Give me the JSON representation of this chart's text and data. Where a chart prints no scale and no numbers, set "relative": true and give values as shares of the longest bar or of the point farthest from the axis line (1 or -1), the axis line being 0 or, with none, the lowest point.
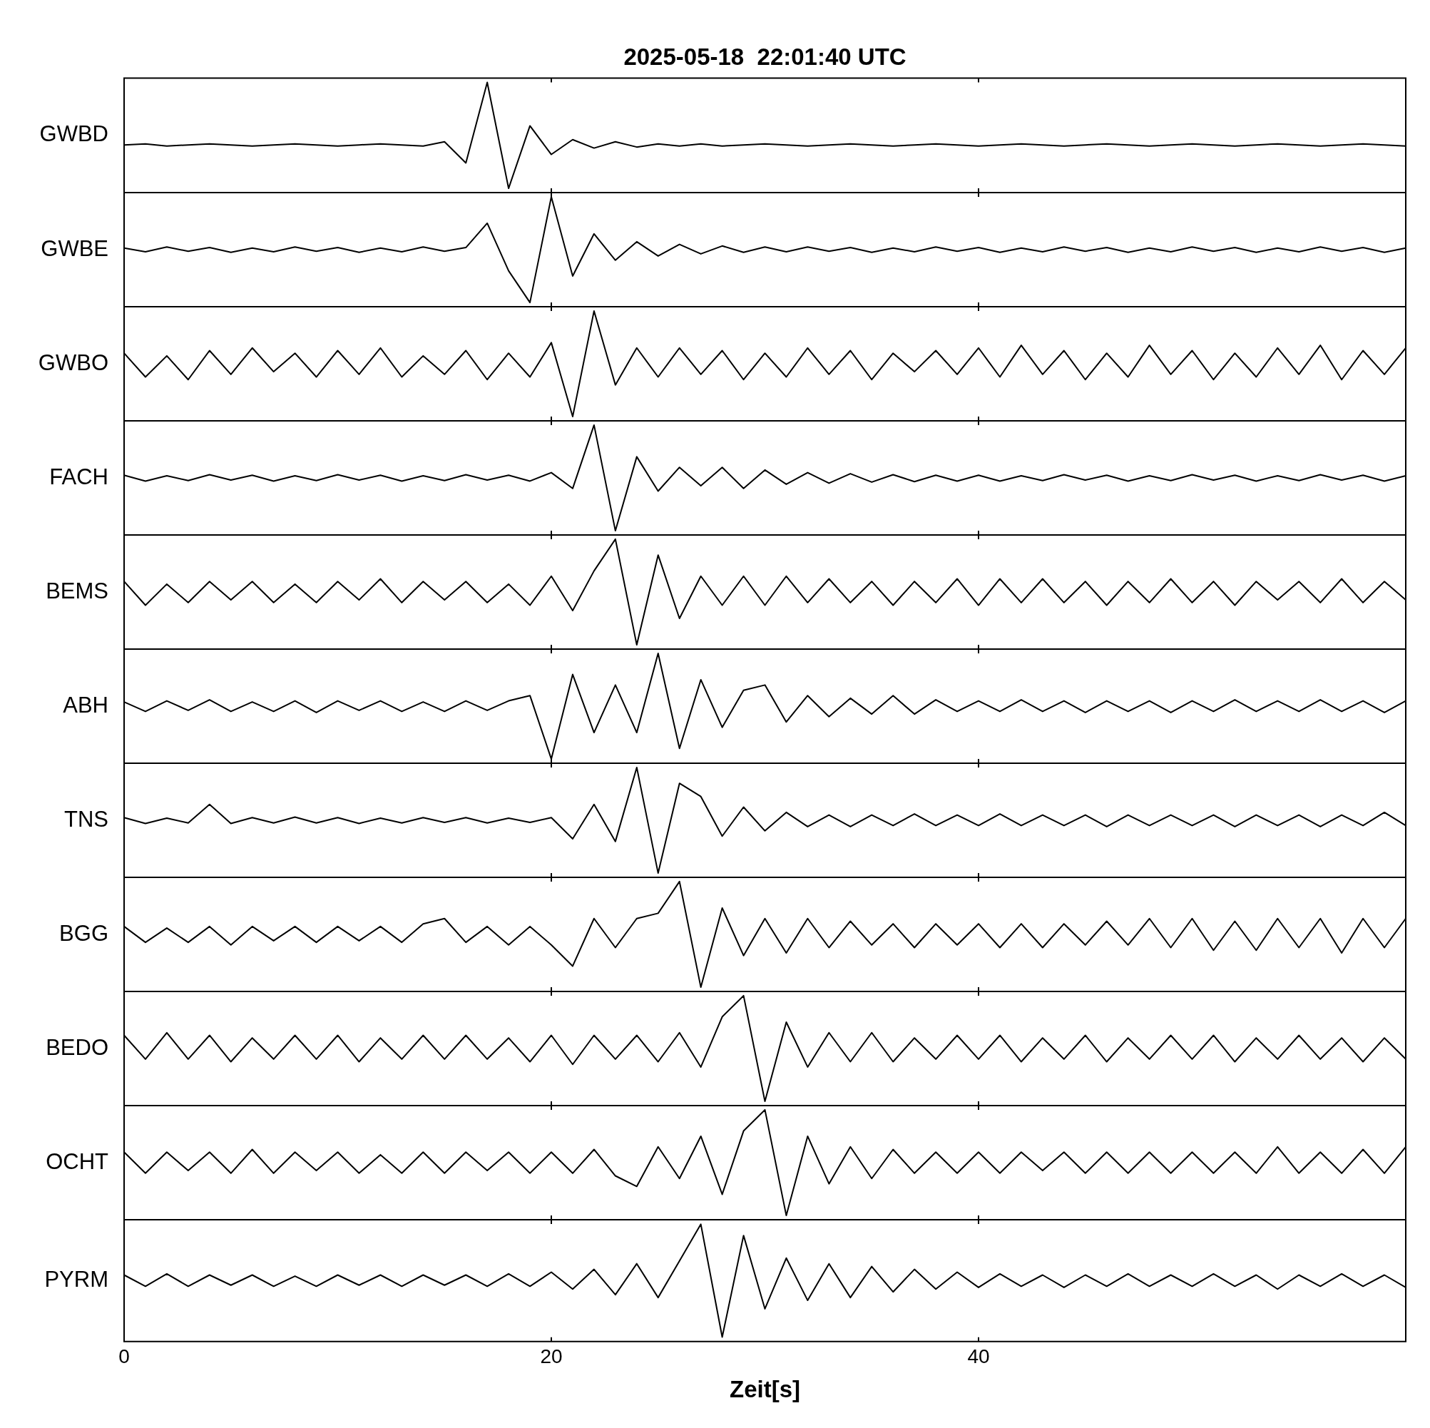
{
  "chart_data": [
    {
      "type": "line",
      "title": "2025-05-18  22:01:40 UTC",
      "ylabel": "GWBD",
      "relative": true,
      "xlim": [
        0,
        60
      ],
      "xticks": [
        0,
        20,
        40
      ],
      "tick_labels": false,
      "color": "#000000",
      "x": [
        0,
        1,
        2,
        3,
        4,
        5,
        6,
        7,
        8,
        9,
        10,
        11,
        12,
        13,
        14,
        15,
        16,
        17,
        18,
        19,
        20,
        21,
        22,
        23,
        24,
        25,
        26,
        27,
        28,
        29,
        30,
        31,
        32,
        33,
        34,
        35,
        36,
        37,
        38,
        39,
        40,
        41,
        42,
        43,
        44,
        45,
        46,
        47,
        48,
        49,
        50,
        51,
        52,
        53,
        54,
        55,
        56,
        57,
        58,
        59,
        60
      ],
      "values": [
        0.41,
        0.42,
        0.4,
        0.41,
        0.42,
        0.41,
        0.4,
        0.41,
        0.42,
        0.41,
        0.4,
        0.41,
        0.42,
        0.41,
        0.4,
        0.44,
        0.24,
        1,
        0,
        0.59,
        0.32,
        0.46,
        0.38,
        0.44,
        0.39,
        0.42,
        0.4,
        0.42,
        0.4,
        0.41,
        0.42,
        0.41,
        0.4,
        0.41,
        0.42,
        0.41,
        0.4,
        0.41,
        0.42,
        0.41,
        0.4,
        0.41,
        0.42,
        0.41,
        0.4,
        0.41,
        0.42,
        0.41,
        0.4,
        0.41,
        0.42,
        0.41,
        0.4,
        0.41,
        0.42,
        0.41,
        0.4,
        0.41,
        0.42,
        0.41,
        0.4
      ]
    },
    {
      "type": "line",
      "ylabel": "GWBE",
      "relative": true,
      "xlim": [
        0,
        60
      ],
      "xticks": [
        0,
        20,
        40
      ],
      "tick_labels": false,
      "color": "#000000",
      "x": [
        0,
        1,
        2,
        3,
        4,
        5,
        6,
        7,
        8,
        9,
        10,
        11,
        12,
        13,
        14,
        15,
        16,
        17,
        18,
        19,
        20,
        21,
        22,
        23,
        24,
        25,
        26,
        27,
        28,
        29,
        30,
        31,
        32,
        33,
        34,
        35,
        36,
        37,
        38,
        39,
        40,
        41,
        42,
        43,
        44,
        45,
        46,
        47,
        48,
        49,
        50,
        51,
        52,
        53,
        54,
        55,
        56,
        57,
        58,
        59,
        60
      ],
      "values": [
        0.515,
        0.48,
        0.525,
        0.485,
        0.52,
        0.475,
        0.515,
        0.48,
        0.525,
        0.485,
        0.52,
        0.475,
        0.515,
        0.48,
        0.525,
        0.485,
        0.52,
        0.75,
        0.3,
        0,
        1,
        0.25,
        0.65,
        0.4,
        0.575,
        0.44,
        0.55,
        0.46,
        0.535,
        0.475,
        0.525,
        0.48,
        0.525,
        0.485,
        0.52,
        0.475,
        0.515,
        0.48,
        0.525,
        0.485,
        0.52,
        0.475,
        0.515,
        0.48,
        0.525,
        0.485,
        0.52,
        0.475,
        0.515,
        0.48,
        0.525,
        0.485,
        0.52,
        0.475,
        0.515,
        0.48,
        0.525,
        0.485,
        0.52,
        0.475,
        0.515
      ]
    },
    {
      "type": "line",
      "ylabel": "GWBO",
      "relative": true,
      "xlim": [
        0,
        60
      ],
      "xticks": [
        0,
        20,
        40
      ],
      "tick_labels": false,
      "color": "#000000",
      "x": [
        0,
        1,
        2,
        3,
        4,
        5,
        6,
        7,
        8,
        9,
        10,
        11,
        12,
        13,
        14,
        15,
        16,
        17,
        18,
        19,
        20,
        21,
        22,
        23,
        24,
        25,
        26,
        27,
        28,
        29,
        30,
        31,
        32,
        33,
        34,
        35,
        36,
        37,
        38,
        39,
        40,
        41,
        42,
        43,
        44,
        45,
        46,
        47,
        48,
        49,
        50,
        51,
        52,
        53,
        54,
        55,
        56,
        57,
        58,
        59,
        60
      ],
      "values": [
        0.6,
        0.375,
        0.575,
        0.35,
        0.625,
        0.4,
        0.65,
        0.425,
        0.6,
        0.375,
        0.625,
        0.4,
        0.65,
        0.375,
        0.575,
        0.4,
        0.625,
        0.35,
        0.6,
        0.375,
        0.7,
        0,
        1,
        0.3,
        0.65,
        0.375,
        0.65,
        0.4,
        0.625,
        0.35,
        0.6,
        0.375,
        0.65,
        0.4,
        0.625,
        0.35,
        0.6,
        0.425,
        0.625,
        0.4,
        0.65,
        0.375,
        0.675,
        0.4,
        0.625,
        0.35,
        0.6,
        0.375,
        0.675,
        0.4,
        0.625,
        0.35,
        0.6,
        0.375,
        0.65,
        0.4,
        0.675,
        0.35,
        0.625,
        0.4,
        0.65
      ]
    },
    {
      "type": "line",
      "ylabel": "FACH",
      "relative": true,
      "xlim": [
        0,
        60
      ],
      "xticks": [
        0,
        20,
        40
      ],
      "tick_labels": false,
      "color": "#000000",
      "x": [
        0,
        1,
        2,
        3,
        4,
        5,
        6,
        7,
        8,
        9,
        10,
        11,
        12,
        13,
        14,
        15,
        16,
        17,
        18,
        19,
        20,
        21,
        22,
        23,
        24,
        25,
        26,
        27,
        28,
        29,
        30,
        31,
        32,
        33,
        34,
        35,
        36,
        37,
        38,
        39,
        40,
        41,
        42,
        43,
        44,
        45,
        46,
        47,
        48,
        49,
        50,
        51,
        52,
        53,
        54,
        55,
        56,
        57,
        58,
        59,
        60
      ],
      "values": [
        0.525,
        0.47,
        0.52,
        0.475,
        0.53,
        0.48,
        0.525,
        0.47,
        0.52,
        0.475,
        0.53,
        0.48,
        0.525,
        0.47,
        0.52,
        0.475,
        0.53,
        0.48,
        0.525,
        0.47,
        0.55,
        0.4,
        1,
        0,
        0.7,
        0.375,
        0.6,
        0.425,
        0.6,
        0.4,
        0.575,
        0.44,
        0.55,
        0.45,
        0.54,
        0.46,
        0.53,
        0.465,
        0.525,
        0.47,
        0.525,
        0.47,
        0.52,
        0.475,
        0.53,
        0.48,
        0.525,
        0.47,
        0.52,
        0.475,
        0.53,
        0.48,
        0.525,
        0.47,
        0.52,
        0.475,
        0.53,
        0.48,
        0.525,
        0.47,
        0.52
      ]
    },
    {
      "type": "line",
      "ylabel": "BEMS",
      "relative": true,
      "xlim": [
        0,
        60
      ],
      "xticks": [
        0,
        20,
        40
      ],
      "tick_labels": false,
      "color": "#000000",
      "x": [
        0,
        1,
        2,
        3,
        4,
        5,
        6,
        7,
        8,
        9,
        10,
        11,
        12,
        13,
        14,
        15,
        16,
        17,
        18,
        19,
        20,
        21,
        22,
        23,
        24,
        25,
        26,
        27,
        28,
        29,
        30,
        31,
        32,
        33,
        34,
        35,
        36,
        37,
        38,
        39,
        40,
        41,
        42,
        43,
        44,
        45,
        46,
        47,
        48,
        49,
        50,
        51,
        52,
        53,
        54,
        55,
        56,
        57,
        58,
        59,
        60
      ],
      "values": [
        0.6,
        0.375,
        0.575,
        0.4,
        0.6,
        0.425,
        0.6,
        0.4,
        0.575,
        0.4,
        0.6,
        0.425,
        0.625,
        0.4,
        0.6,
        0.425,
        0.6,
        0.4,
        0.575,
        0.375,
        0.65,
        0.325,
        0.7,
        1,
        0,
        0.85,
        0.25,
        0.65,
        0.375,
        0.65,
        0.375,
        0.65,
        0.4,
        0.625,
        0.4,
        0.6,
        0.375,
        0.6,
        0.4,
        0.625,
        0.375,
        0.625,
        0.4,
        0.625,
        0.4,
        0.6,
        0.375,
        0.6,
        0.4,
        0.625,
        0.4,
        0.6,
        0.375,
        0.6,
        0.425,
        0.6,
        0.4,
        0.625,
        0.4,
        0.6,
        0.425
      ]
    },
    {
      "type": "line",
      "ylabel": "ABH",
      "relative": true,
      "xlim": [
        0,
        60
      ],
      "xticks": [
        0,
        20,
        40
      ],
      "tick_labels": false,
      "color": "#000000",
      "x": [
        0,
        1,
        2,
        3,
        4,
        5,
        6,
        7,
        8,
        9,
        10,
        11,
        12,
        13,
        14,
        15,
        16,
        17,
        18,
        19,
        20,
        21,
        22,
        23,
        24,
        25,
        26,
        27,
        28,
        29,
        30,
        31,
        32,
        33,
        34,
        35,
        36,
        37,
        38,
        39,
        40,
        41,
        42,
        43,
        44,
        45,
        46,
        47,
        48,
        49,
        50,
        51,
        52,
        53,
        54,
        55,
        56,
        57,
        58,
        59,
        60
      ],
      "values": [
        0.54,
        0.45,
        0.55,
        0.46,
        0.56,
        0.45,
        0.54,
        0.45,
        0.55,
        0.44,
        0.55,
        0.46,
        0.55,
        0.45,
        0.54,
        0.45,
        0.55,
        0.46,
        0.55,
        0.6,
        0,
        0.8,
        0.25,
        0.7,
        0.25,
        1,
        0.1,
        0.75,
        0.3,
        0.65,
        0.7,
        0.35,
        0.6,
        0.4,
        0.575,
        0.425,
        0.6,
        0.425,
        0.56,
        0.45,
        0.55,
        0.45,
        0.56,
        0.45,
        0.55,
        0.44,
        0.55,
        0.45,
        0.55,
        0.44,
        0.55,
        0.45,
        0.56,
        0.45,
        0.55,
        0.45,
        0.56,
        0.45,
        0.55,
        0.44,
        0.55
      ]
    },
    {
      "type": "line",
      "ylabel": "TNS",
      "relative": true,
      "xlim": [
        0,
        60
      ],
      "xticks": [
        0,
        20,
        40
      ],
      "tick_labels": false,
      "color": "#000000",
      "x": [
        0,
        1,
        2,
        3,
        4,
        5,
        6,
        7,
        8,
        9,
        10,
        11,
        12,
        13,
        14,
        15,
        16,
        17,
        18,
        19,
        20,
        21,
        22,
        23,
        24,
        25,
        26,
        27,
        28,
        29,
        30,
        31,
        32,
        33,
        34,
        35,
        36,
        37,
        38,
        39,
        40,
        41,
        42,
        43,
        44,
        45,
        46,
        47,
        48,
        49,
        50,
        51,
        52,
        53,
        54,
        55,
        56,
        57,
        58,
        59,
        60
      ],
      "values": [
        0.525,
        0.47,
        0.52,
        0.475,
        0.65,
        0.47,
        0.525,
        0.475,
        0.53,
        0.475,
        0.525,
        0.47,
        0.52,
        0.475,
        0.525,
        0.48,
        0.525,
        0.475,
        0.52,
        0.48,
        0.525,
        0.325,
        0.65,
        0.3,
        1,
        0,
        0.85,
        0.725,
        0.35,
        0.625,
        0.4,
        0.575,
        0.44,
        0.55,
        0.44,
        0.55,
        0.45,
        0.56,
        0.45,
        0.55,
        0.45,
        0.56,
        0.45,
        0.55,
        0.45,
        0.55,
        0.44,
        0.55,
        0.45,
        0.55,
        0.45,
        0.55,
        0.44,
        0.55,
        0.45,
        0.55,
        0.44,
        0.55,
        0.45,
        0.575,
        0.45
      ]
    },
    {
      "type": "line",
      "ylabel": "BGG",
      "relative": true,
      "xlim": [
        0,
        60
      ],
      "xticks": [
        0,
        20,
        40
      ],
      "tick_labels": false,
      "color": "#000000",
      "x": [
        0,
        1,
        2,
        3,
        4,
        5,
        6,
        7,
        8,
        9,
        10,
        11,
        12,
        13,
        14,
        15,
        16,
        17,
        18,
        19,
        20,
        21,
        22,
        23,
        24,
        25,
        26,
        27,
        28,
        29,
        30,
        31,
        32,
        33,
        34,
        35,
        36,
        37,
        38,
        39,
        40,
        41,
        42,
        43,
        44,
        45,
        46,
        47,
        48,
        49,
        50,
        51,
        52,
        53,
        54,
        55,
        56,
        57,
        58,
        59,
        60
      ],
      "values": [
        0.575,
        0.425,
        0.56,
        0.425,
        0.575,
        0.4,
        0.575,
        0.44,
        0.575,
        0.425,
        0.575,
        0.44,
        0.575,
        0.425,
        0.6,
        0.65,
        0.425,
        0.575,
        0.4,
        0.575,
        0.4,
        0.2,
        0.65,
        0.375,
        0.65,
        0.7,
        1,
        0,
        0.75,
        0.3,
        0.65,
        0.325,
        0.65,
        0.375,
        0.625,
        0.4,
        0.6,
        0.375,
        0.6,
        0.4,
        0.6,
        0.375,
        0.6,
        0.375,
        0.6,
        0.4,
        0.625,
        0.4,
        0.65,
        0.375,
        0.65,
        0.35,
        0.625,
        0.35,
        0.65,
        0.375,
        0.65,
        0.325,
        0.65,
        0.375,
        0.65
      ]
    },
    {
      "type": "line",
      "ylabel": "BEDO",
      "relative": true,
      "xlim": [
        0,
        60
      ],
      "xticks": [
        0,
        20,
        40
      ],
      "tick_labels": false,
      "color": "#000000",
      "x": [
        0,
        1,
        2,
        3,
        4,
        5,
        6,
        7,
        8,
        9,
        10,
        11,
        12,
        13,
        14,
        15,
        16,
        17,
        18,
        19,
        20,
        21,
        22,
        23,
        24,
        25,
        26,
        27,
        28,
        29,
        30,
        31,
        32,
        33,
        34,
        35,
        36,
        37,
        38,
        39,
        40,
        41,
        42,
        43,
        44,
        45,
        46,
        47,
        48,
        49,
        50,
        51,
        52,
        53,
        54,
        55,
        56,
        57,
        58,
        59,
        60
      ],
      "values": [
        0.625,
        0.4,
        0.65,
        0.4,
        0.625,
        0.375,
        0.6,
        0.4,
        0.625,
        0.4,
        0.625,
        0.375,
        0.6,
        0.4,
        0.625,
        0.4,
        0.625,
        0.4,
        0.6,
        0.375,
        0.625,
        0.35,
        0.625,
        0.4,
        0.625,
        0.375,
        0.65,
        0.325,
        0.8,
        1,
        0,
        0.75,
        0.325,
        0.65,
        0.375,
        0.65,
        0.375,
        0.6,
        0.4,
        0.625,
        0.4,
        0.625,
        0.375,
        0.6,
        0.4,
        0.625,
        0.375,
        0.6,
        0.4,
        0.625,
        0.4,
        0.625,
        0.375,
        0.6,
        0.4,
        0.625,
        0.4,
        0.6,
        0.375,
        0.6,
        0.4
      ]
    },
    {
      "type": "line",
      "ylabel": "OCHT",
      "relative": true,
      "xlim": [
        0,
        60
      ],
      "xticks": [
        0,
        20,
        40
      ],
      "tick_labels": false,
      "color": "#000000",
      "x": [
        0,
        1,
        2,
        3,
        4,
        5,
        6,
        7,
        8,
        9,
        10,
        11,
        12,
        13,
        14,
        15,
        16,
        17,
        18,
        19,
        20,
        21,
        22,
        23,
        24,
        25,
        26,
        27,
        28,
        29,
        30,
        31,
        32,
        33,
        34,
        35,
        36,
        37,
        38,
        39,
        40,
        41,
        42,
        43,
        44,
        45,
        46,
        47,
        48,
        49,
        50,
        51,
        52,
        53,
        54,
        55,
        56,
        57,
        58,
        59,
        60
      ],
      "values": [
        0.6,
        0.4,
        0.6,
        0.425,
        0.6,
        0.4,
        0.625,
        0.4,
        0.6,
        0.425,
        0.6,
        0.4,
        0.575,
        0.4,
        0.6,
        0.4,
        0.6,
        0.425,
        0.6,
        0.4,
        0.6,
        0.4,
        0.625,
        0.375,
        0.275,
        0.65,
        0.35,
        0.75,
        0.2,
        0.8,
        1,
        0,
        0.75,
        0.3,
        0.65,
        0.35,
        0.625,
        0.4,
        0.6,
        0.4,
        0.6,
        0.4,
        0.6,
        0.425,
        0.6,
        0.4,
        0.6,
        0.4,
        0.6,
        0.4,
        0.6,
        0.4,
        0.6,
        0.4,
        0.65,
        0.4,
        0.6,
        0.4,
        0.625,
        0.4,
        0.65
      ]
    },
    {
      "type": "line",
      "ylabel": "PYRM",
      "xlabel": "Zeit[s]",
      "relative": true,
      "xlim": [
        0,
        60
      ],
      "xticks": [
        0,
        20,
        40
      ],
      "tick_labels": "x",
      "color": "#000000",
      "x": [
        0,
        1,
        2,
        3,
        4,
        5,
        6,
        7,
        8,
        9,
        10,
        11,
        12,
        13,
        14,
        15,
        16,
        17,
        18,
        19,
        20,
        21,
        22,
        23,
        24,
        25,
        26,
        27,
        28,
        29,
        30,
        31,
        32,
        33,
        34,
        35,
        36,
        37,
        38,
        39,
        40,
        41,
        42,
        43,
        44,
        45,
        46,
        47,
        48,
        49,
        50,
        51,
        52,
        53,
        54,
        55,
        56,
        57,
        58,
        59,
        60
      ],
      "values": [
        0.55,
        0.45,
        0.56,
        0.45,
        0.55,
        0.46,
        0.55,
        0.45,
        0.54,
        0.45,
        0.55,
        0.46,
        0.55,
        0.45,
        0.55,
        0.46,
        0.55,
        0.45,
        0.56,
        0.45,
        0.575,
        0.425,
        0.6,
        0.375,
        0.65,
        0.35,
        0.675,
        1,
        0,
        0.9,
        0.25,
        0.7,
        0.325,
        0.65,
        0.35,
        0.625,
        0.4,
        0.6,
        0.425,
        0.575,
        0.44,
        0.56,
        0.45,
        0.55,
        0.44,
        0.55,
        0.45,
        0.56,
        0.45,
        0.55,
        0.45,
        0.56,
        0.45,
        0.55,
        0.425,
        0.55,
        0.45,
        0.56,
        0.45,
        0.55,
        0.44
      ]
    }
  ]
}
